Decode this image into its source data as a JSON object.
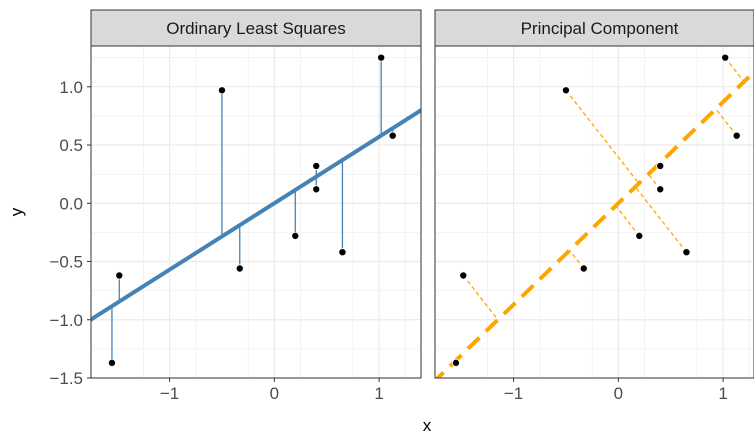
{
  "chart_data": {
    "type": "scatter",
    "xlabel": "x",
    "ylabel": "y",
    "xlim": [
      -1.75,
      1.4
    ],
    "ylim": [
      -1.5,
      1.35
    ],
    "x_ticks": [
      -1,
      0,
      1
    ],
    "x_tick_labels": [
      "−1",
      "0",
      "1"
    ],
    "y_ticks": [
      -1.5,
      -1.0,
      -0.5,
      0.0,
      0.5,
      1.0
    ],
    "y_tick_labels": [
      "−1.5",
      "−1.0",
      "−0.5",
      "0.0",
      "0.5",
      "1.0"
    ],
    "grid": true,
    "colors": {
      "ols": "#4682b4",
      "pca": "#ffa500",
      "point": "#000000",
      "strip_bg": "#d9d9d9",
      "grid": "#ebebeb"
    },
    "points": [
      {
        "x": -1.55,
        "y": -1.37
      },
      {
        "x": -1.48,
        "y": -0.62
      },
      {
        "x": -0.5,
        "y": 0.97
      },
      {
        "x": -0.33,
        "y": -0.56
      },
      {
        "x": 0.2,
        "y": -0.28
      },
      {
        "x": 0.4,
        "y": 0.32
      },
      {
        "x": 0.4,
        "y": 0.12
      },
      {
        "x": 0.65,
        "y": -0.42
      },
      {
        "x": 1.02,
        "y": 1.25
      },
      {
        "x": 1.13,
        "y": 0.58
      }
    ],
    "panels": [
      {
        "title": "Ordinary Least Squares",
        "line": {
          "slope": 0.57,
          "intercept": 0.0,
          "style": "solid",
          "color": "#4682b4"
        },
        "residual_style": "vertical"
      },
      {
        "title": "Principal Component",
        "line": {
          "slope": 0.87,
          "intercept": 0.0,
          "style": "dashed",
          "color": "#ffa500"
        },
        "residual_style": "perpendicular"
      }
    ]
  }
}
